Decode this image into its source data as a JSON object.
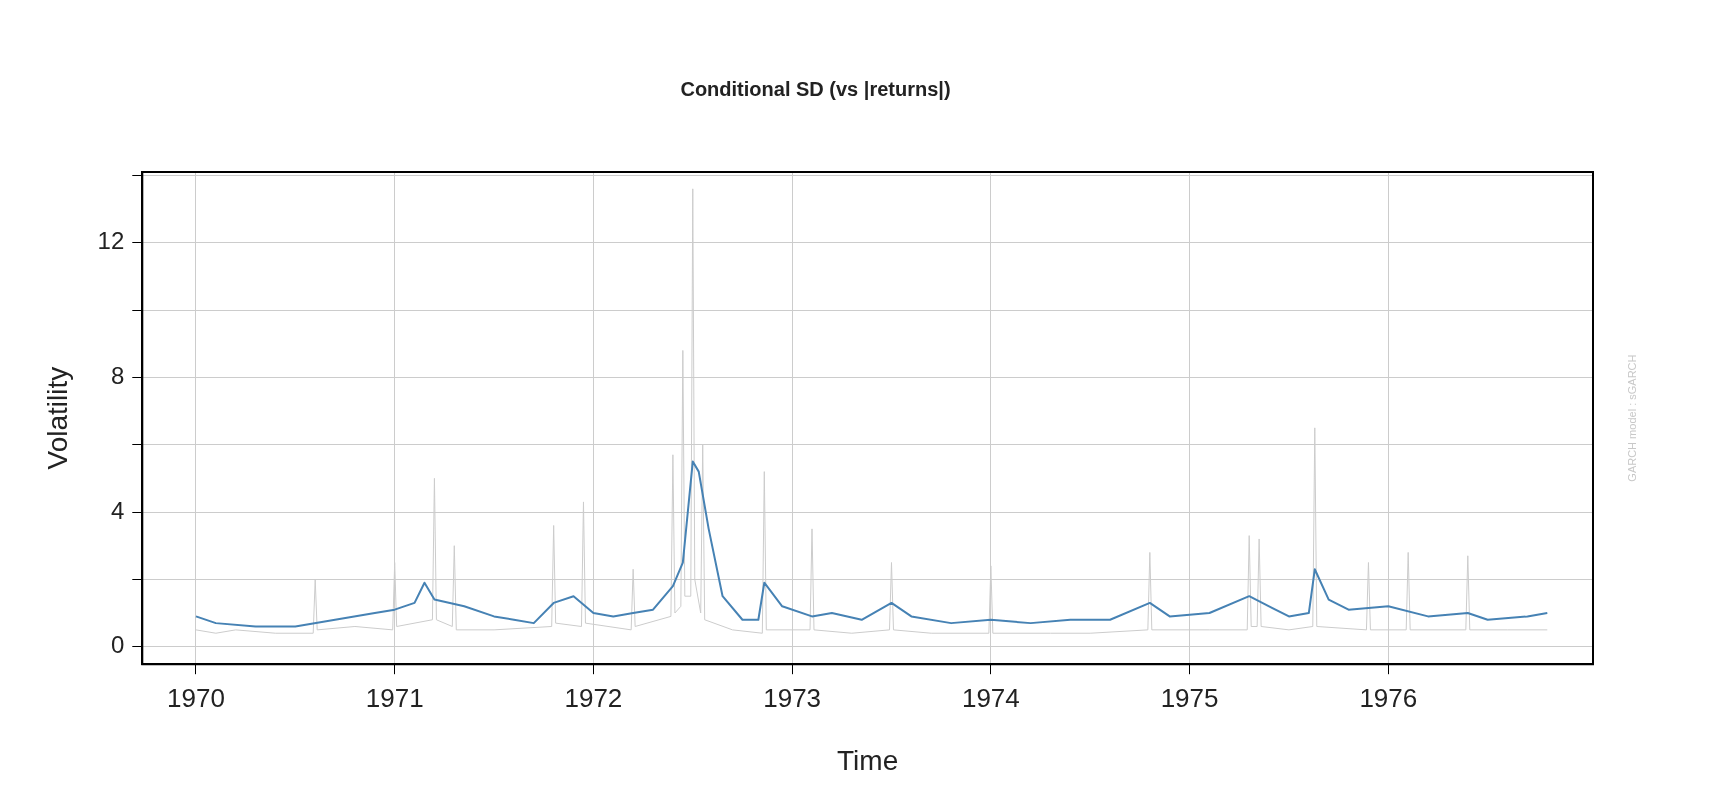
{
  "chart_data": {
    "type": "line",
    "title": "Conditional SD (vs |returns|)",
    "xlabel": "Time",
    "ylabel": "Volatility",
    "annotations": [
      "GARCH model : sGARCH"
    ],
    "xlim": [
      1969.73,
      1977.03
    ],
    "ylim": [
      -0.52,
      14.1
    ],
    "xticks": [
      1970,
      1971,
      1972,
      1973,
      1974,
      1975,
      1976
    ],
    "yticks": [
      0,
      {
        "value": 2,
        "label": null
      },
      4,
      {
        "value": 6,
        "label": null
      },
      8,
      {
        "value": 10,
        "label": null
      },
      12,
      {
        "value": 14,
        "label": null
      }
    ],
    "grid": true,
    "series": [
      {
        "color": "#cccccc",
        "x": [
          1970.0,
          1970.1,
          1970.2,
          1970.4,
          1970.59,
          1970.6,
          1970.61,
          1970.8,
          1970.99,
          1971.0,
          1971.01,
          1971.19,
          1971.2,
          1971.21,
          1971.29,
          1971.3,
          1971.31,
          1971.5,
          1971.79,
          1971.8,
          1971.81,
          1971.94,
          1971.95,
          1971.96,
          1972.19,
          1972.2,
          1972.21,
          1972.39,
          1972.4,
          1972.41,
          1972.44,
          1972.45,
          1972.46,
          1972.49,
          1972.5,
          1972.51,
          1972.54,
          1972.55,
          1972.56,
          1972.7,
          1972.85,
          1972.86,
          1972.87,
          1973.09,
          1973.1,
          1973.11,
          1973.3,
          1973.49,
          1973.5,
          1973.51,
          1973.7,
          1973.99,
          1974.0,
          1974.01,
          1974.3,
          1974.5,
          1974.79,
          1974.8,
          1974.81,
          1975.1,
          1975.29,
          1975.3,
          1975.31,
          1975.34,
          1975.35,
          1975.36,
          1975.5,
          1975.62,
          1975.63,
          1975.64,
          1975.89,
          1975.9,
          1975.91,
          1976.09,
          1976.1,
          1976.11,
          1976.39,
          1976.4,
          1976.41,
          1976.6,
          1976.8
        ],
        "values": [
          0.5,
          0.4,
          0.5,
          0.4,
          0.4,
          2.0,
          0.5,
          0.6,
          0.5,
          2.5,
          0.6,
          0.8,
          5.0,
          0.8,
          0.6,
          3.0,
          0.5,
          0.5,
          0.6,
          3.6,
          0.7,
          0.6,
          4.3,
          0.7,
          0.5,
          2.3,
          0.6,
          0.9,
          5.7,
          1.0,
          1.2,
          8.8,
          1.5,
          1.5,
          13.6,
          2.0,
          1.0,
          6.0,
          0.8,
          0.5,
          0.4,
          5.2,
          0.5,
          0.5,
          3.5,
          0.5,
          0.4,
          0.5,
          2.5,
          0.5,
          0.4,
          0.4,
          2.4,
          0.4,
          0.4,
          0.4,
          0.5,
          2.8,
          0.5,
          0.5,
          0.5,
          3.3,
          0.6,
          0.6,
          3.2,
          0.6,
          0.5,
          0.6,
          6.5,
          0.6,
          0.5,
          2.5,
          0.5,
          0.5,
          2.8,
          0.5,
          0.5,
          2.7,
          0.5,
          0.5,
          0.5
        ]
      },
      {
        "color": "#4682b4",
        "x": [
          1970.0,
          1970.1,
          1970.3,
          1970.5,
          1970.7,
          1970.9,
          1971.0,
          1971.1,
          1971.15,
          1971.2,
          1971.35,
          1971.5,
          1971.6,
          1971.7,
          1971.8,
          1971.9,
          1972.0,
          1972.1,
          1972.2,
          1972.3,
          1972.4,
          1972.45,
          1972.5,
          1972.53,
          1972.58,
          1972.65,
          1972.75,
          1972.83,
          1972.86,
          1972.95,
          1973.1,
          1973.2,
          1973.35,
          1973.5,
          1973.6,
          1973.8,
          1974.0,
          1974.2,
          1974.4,
          1974.6,
          1974.8,
          1974.9,
          1975.1,
          1975.3,
          1975.4,
          1975.5,
          1975.6,
          1975.63,
          1975.7,
          1975.8,
          1976.0,
          1976.2,
          1976.4,
          1976.5,
          1976.7,
          1976.8
        ],
        "values": [
          0.9,
          0.7,
          0.6,
          0.6,
          0.8,
          1.0,
          1.1,
          1.3,
          1.9,
          1.4,
          1.2,
          0.9,
          0.8,
          0.7,
          1.3,
          1.5,
          1.0,
          0.9,
          1.0,
          1.1,
          1.8,
          2.5,
          5.5,
          5.2,
          3.5,
          1.5,
          0.8,
          0.8,
          1.9,
          1.2,
          0.9,
          1.0,
          0.8,
          1.3,
          0.9,
          0.7,
          0.8,
          0.7,
          0.8,
          0.8,
          1.3,
          0.9,
          1.0,
          1.5,
          1.2,
          0.9,
          1.0,
          2.3,
          1.4,
          1.1,
          1.2,
          0.9,
          1.0,
          0.8,
          0.9,
          1.0
        ]
      }
    ]
  }
}
